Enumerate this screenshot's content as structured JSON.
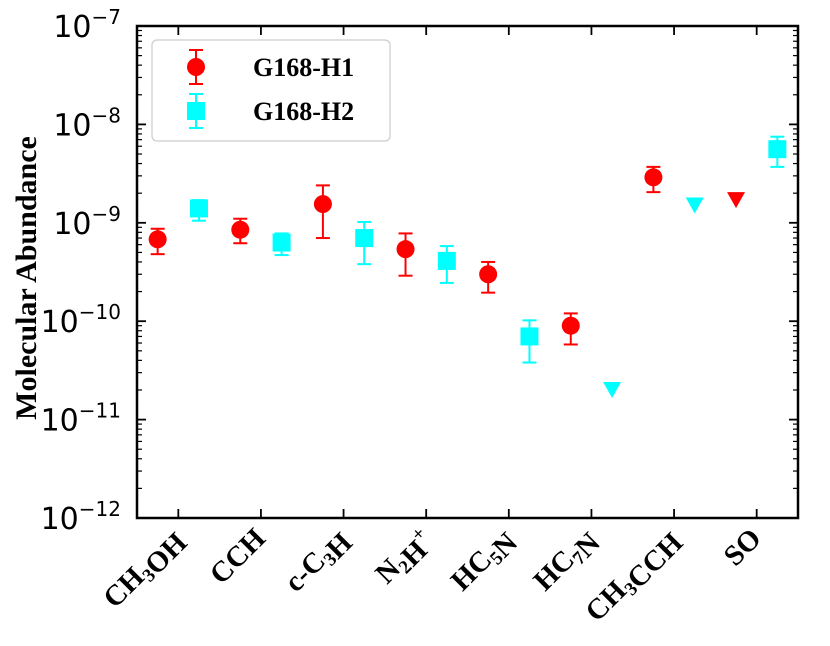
{
  "chart_data": {
    "type": "scatter",
    "ylabel": "Molecular Abundance",
    "yscale": "log",
    "ylim": [
      1e-12,
      1e-07
    ],
    "yticks": [
      {
        "base": "10",
        "exp": "−12"
      },
      {
        "base": "10",
        "exp": "−11"
      },
      {
        "base": "10",
        "exp": "−10"
      },
      {
        "base": "10",
        "exp": "−9"
      },
      {
        "base": "10",
        "exp": "−8"
      },
      {
        "base": "10",
        "exp": "−7"
      }
    ],
    "categories": [
      {
        "parts": [
          {
            "t": "CH"
          },
          {
            "t": "3",
            "sub": true
          },
          {
            "t": "OH"
          }
        ]
      },
      {
        "parts": [
          {
            "t": "CCH"
          }
        ]
      },
      {
        "parts": [
          {
            "t": "c-C"
          },
          {
            "t": "3",
            "sub": true
          },
          {
            "t": "H"
          }
        ]
      },
      {
        "parts": [
          {
            "t": "N"
          },
          {
            "t": "2",
            "sub": true
          },
          {
            "t": "H"
          },
          {
            "t": "+",
            "sup": true
          }
        ]
      },
      {
        "parts": [
          {
            "t": "HC"
          },
          {
            "t": "5",
            "sub": true
          },
          {
            "t": "N"
          }
        ]
      },
      {
        "parts": [
          {
            "t": "HC"
          },
          {
            "t": "7",
            "sub": true
          },
          {
            "t": "N"
          }
        ]
      },
      {
        "parts": [
          {
            "t": "CH"
          },
          {
            "t": "3",
            "sub": true
          },
          {
            "t": "CCH"
          }
        ]
      },
      {
        "parts": [
          {
            "t": "SO"
          }
        ]
      }
    ],
    "series": [
      {
        "name": "G168-H1",
        "color": "#ff0000",
        "marker": "circle",
        "x_offset": -0.25,
        "points": [
          {
            "value": 6.8e-10,
            "low": 4.8e-10,
            "high": 8.7e-10
          },
          {
            "value": 8.5e-10,
            "low": 6.2e-10,
            "high": 1.1e-09
          },
          {
            "value": 1.55e-09,
            "low": 7e-10,
            "high": 2.4e-09
          },
          {
            "value": 5.4e-10,
            "low": 2.9e-10,
            "high": 7.8e-10
          },
          {
            "value": 3e-10,
            "low": 1.95e-10,
            "high": 4e-10
          },
          {
            "value": 9e-11,
            "low": 5.8e-11,
            "high": 1.2e-10
          },
          {
            "value": 2.9e-09,
            "low": 2.05e-09,
            "high": 3.7e-09
          },
          {
            "value": 1.7e-09,
            "upper_limit": true
          }
        ]
      },
      {
        "name": "G168-H2",
        "color": "#00ffff",
        "marker": "square",
        "x_offset": 0.25,
        "points": [
          {
            "value": 1.4e-09,
            "low": 1.05e-09,
            "high": 1.7e-09
          },
          {
            "value": 6.3e-10,
            "low": 4.7e-10,
            "high": 7.8e-10
          },
          {
            "value": 7e-10,
            "low": 3.8e-10,
            "high": 1.02e-09
          },
          {
            "value": 4.1e-10,
            "low": 2.45e-10,
            "high": 5.8e-10
          },
          {
            "value": 7e-11,
            "low": 3.8e-11,
            "high": 1.02e-10
          },
          {
            "value": 2e-11,
            "upper_limit": true
          },
          {
            "value": 1.5e-09,
            "upper_limit": true
          },
          {
            "value": 5.6e-09,
            "low": 3.7e-09,
            "high": 7.5e-09
          }
        ]
      }
    ],
    "legend": {
      "position": "top-left"
    }
  }
}
